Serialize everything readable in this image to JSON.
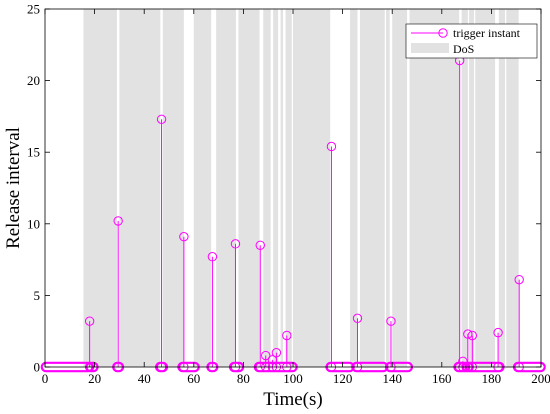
{
  "chart_data": {
    "type": "stem",
    "xlabel": "Time(s)",
    "ylabel": "Release interval",
    "xlim": [
      0,
      200
    ],
    "ylim": [
      0,
      25
    ],
    "xticks": [
      0,
      20,
      40,
      60,
      80,
      100,
      120,
      140,
      160,
      180,
      200
    ],
    "yticks": [
      0,
      5,
      10,
      15,
      20,
      25
    ],
    "legend": {
      "position": "top-right",
      "entries": [
        {
          "label": "trigger instant",
          "type": "stem-marker"
        },
        {
          "label": "DoS",
          "type": "shaded-patch"
        }
      ]
    },
    "colors": {
      "stem": "#ff00ff",
      "dos_patch": "#e2e2e2"
    },
    "dos_intervals": [
      [
        15.5,
        29
      ],
      [
        30,
        46.5
      ],
      [
        47.5,
        56
      ],
      [
        60,
        67
      ],
      [
        69,
        77
      ],
      [
        78,
        86.5
      ],
      [
        88,
        91
      ],
      [
        92,
        94
      ],
      [
        95,
        96
      ],
      [
        97,
        99.5
      ],
      [
        100,
        115
      ],
      [
        123,
        126
      ],
      [
        127,
        137
      ],
      [
        137.5,
        139
      ],
      [
        140,
        146
      ],
      [
        147,
        167
      ],
      [
        168,
        170.5
      ],
      [
        171,
        173
      ],
      [
        173.5,
        181.5
      ],
      [
        183,
        185.5
      ],
      [
        186,
        191
      ]
    ],
    "series": [
      {
        "x": [
          18,
          29.5,
          47,
          56,
          67.5,
          76.8,
          86.8,
          89,
          91.7,
          93.3,
          97.5,
          115.5,
          126,
          139.5,
          167.2,
          168.5,
          170.5,
          172.3,
          182.7,
          191.2
        ],
        "y": [
          3.2,
          10.2,
          17.3,
          9.1,
          7.7,
          8.6,
          8.5,
          0.8,
          0.5,
          1.0,
          2.2,
          15.4,
          3.4,
          3.2,
          21.4,
          0.4,
          2.3,
          2.2,
          2.4,
          6.1
        ]
      }
    ],
    "zero_triggers": [
      [
        0.4,
        17.5
      ],
      [
        18.4,
        19.5
      ],
      [
        29.2,
        29.8
      ],
      [
        46.5,
        47.5
      ],
      [
        55.5,
        60.3
      ],
      [
        67.2,
        67.8
      ],
      [
        76.3,
        78.2
      ],
      [
        86.3,
        99.8
      ],
      [
        115.2,
        122.8
      ],
      [
        125.6,
        136.4
      ],
      [
        139.2,
        146.3
      ],
      [
        166.8,
        169.4
      ],
      [
        170.1,
        170.8
      ],
      [
        171.4,
        183.2
      ],
      [
        190.8,
        199.8
      ]
    ]
  }
}
